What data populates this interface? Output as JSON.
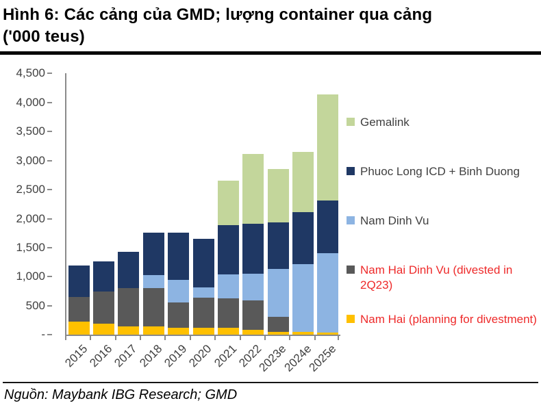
{
  "figure": {
    "title_line1": "Hình 6: Các cảng của GMD; lượng container qua cảng",
    "title_line2": "('000 teus)",
    "source": "Nguồn: Maybank IBG Research; GMD"
  },
  "colors": {
    "gemalink": "#c3d69b",
    "phuoc_long": "#1f3864",
    "nam_dinh_vu": "#8db4e2",
    "nam_hai_dinh_vu": "#595959",
    "nam_hai": "#ffc000",
    "legend_red_text": "#ee2a2a",
    "legend_dark_text": "#3f3f3f",
    "axis": "#8a8a8a"
  },
  "chart_data": {
    "type": "bar",
    "stacked": true,
    "title": "Hình 6: Các cảng của GMD; lượng container qua cảng ('000 teus)",
    "xlabel": "",
    "ylabel": "'000 teus",
    "ylim": [
      0,
      4500
    ],
    "ytick_step": 500,
    "ytick_labels": [
      "-",
      "500",
      "1,000",
      "1,500",
      "2,000",
      "2,500",
      "3,000",
      "3,500",
      "4,000",
      "4,500"
    ],
    "grid": false,
    "legend_position": "right",
    "categories": [
      "2015",
      "2016",
      "2017",
      "2018",
      "2019",
      "2020",
      "2021",
      "2022",
      "2023e",
      "2024e",
      "2025e"
    ],
    "series": [
      {
        "name": "Nam Hai (planning for divestment)",
        "color_key": "nam_hai",
        "values": [
          230,
          190,
          150,
          145,
          125,
          125,
          120,
          90,
          55,
          55,
          45
        ]
      },
      {
        "name": "Nam Hai Dinh Vu (divested in 2Q23)",
        "color_key": "nam_hai_dinh_vu",
        "values": [
          425,
          560,
          650,
          655,
          430,
          520,
          510,
          505,
          260,
          0,
          0
        ]
      },
      {
        "name": "Nam Dinh Vu",
        "color_key": "nam_dinh_vu",
        "values": [
          0,
          0,
          0,
          225,
          390,
          175,
          410,
          460,
          825,
          1165,
          1365
        ]
      },
      {
        "name": "Phuoc Long ICD + Binh Duong",
        "color_key": "phuoc_long",
        "values": [
          545,
          520,
          635,
          735,
          820,
          830,
          850,
          855,
          795,
          890,
          905
        ]
      },
      {
        "name": "Gemalink",
        "color_key": "gemalink",
        "values": [
          0,
          0,
          0,
          0,
          0,
          0,
          770,
          1200,
          925,
          1040,
          1825
        ]
      }
    ],
    "totals": [
      1200,
      1270,
      1435,
      1760,
      1765,
      1650,
      2660,
      3110,
      2860,
      3150,
      4140
    ]
  },
  "legend": {
    "items": [
      {
        "label": "Gemalink",
        "color_key": "gemalink",
        "red": false
      },
      {
        "label": "Phuoc Long ICD + Binh Duong",
        "color_key": "phuoc_long",
        "red": false
      },
      {
        "label": "Nam Dinh Vu",
        "color_key": "nam_dinh_vu",
        "red": false
      },
      {
        "label": "Nam Hai Dinh Vu (divested in 2Q23)",
        "color_key": "nam_hai_dinh_vu",
        "red": true
      },
      {
        "label": "Nam Hai (planning for divestment)",
        "color_key": "nam_hai",
        "red": true
      }
    ]
  }
}
